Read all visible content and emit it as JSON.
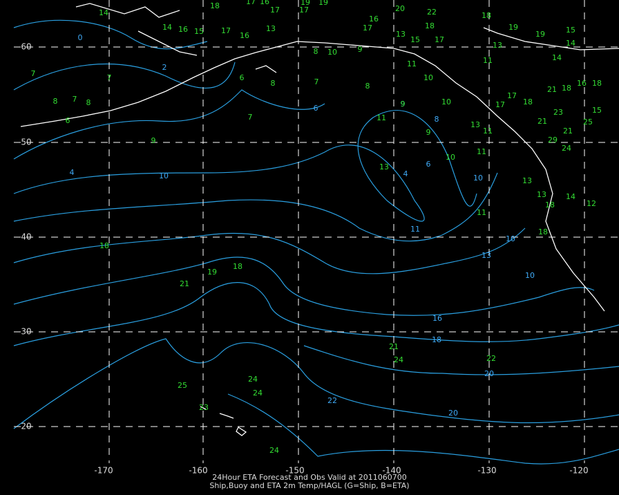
{
  "map": {
    "longitude_labels": [
      "-170",
      "-160",
      "-150",
      "-140",
      "-130",
      "-120"
    ],
    "latitude_labels": [
      "60",
      "50",
      "40",
      "30",
      "20"
    ],
    "contour_labels": [
      "0",
      "2",
      "4",
      "10",
      "6",
      "9",
      "8",
      "6",
      "4",
      "11",
      "10",
      "10",
      "13",
      "10",
      "16",
      "18",
      "20",
      "22",
      "20"
    ],
    "observations": [
      "7",
      "8",
      "7",
      "8",
      "6",
      "7",
      "9",
      "7",
      "6",
      "8",
      "7",
      "8",
      "11",
      "13",
      "9",
      "9",
      "10",
      "11",
      "11",
      "18",
      "18",
      "19",
      "21",
      "21",
      "24",
      "22",
      "25",
      "24",
      "24",
      "23",
      "24",
      "17",
      "16",
      "18",
      "17",
      "17",
      "19",
      "19",
      "20",
      "22",
      "18",
      "19",
      "19",
      "15",
      "14",
      "14",
      "17",
      "15",
      "13",
      "17",
      "16",
      "18",
      "13",
      "11",
      "11",
      "10",
      "10",
      "13",
      "11",
      "17",
      "17",
      "18",
      "21",
      "18",
      "16",
      "18",
      "15",
      "23",
      "21",
      "25",
      "21",
      "24",
      "29",
      "13",
      "12",
      "14",
      "13",
      "18",
      "18",
      "14",
      "14",
      "16",
      "15",
      "17",
      "16",
      "13",
      "9",
      "10",
      "8"
    ],
    "caption": [
      "24Hour ETA Forecast and Obs Valid at 2011060700",
      "Ship,Buoy and ETA 2m Temp/HAGL (G=Ship, B=ETA)"
    ]
  }
}
